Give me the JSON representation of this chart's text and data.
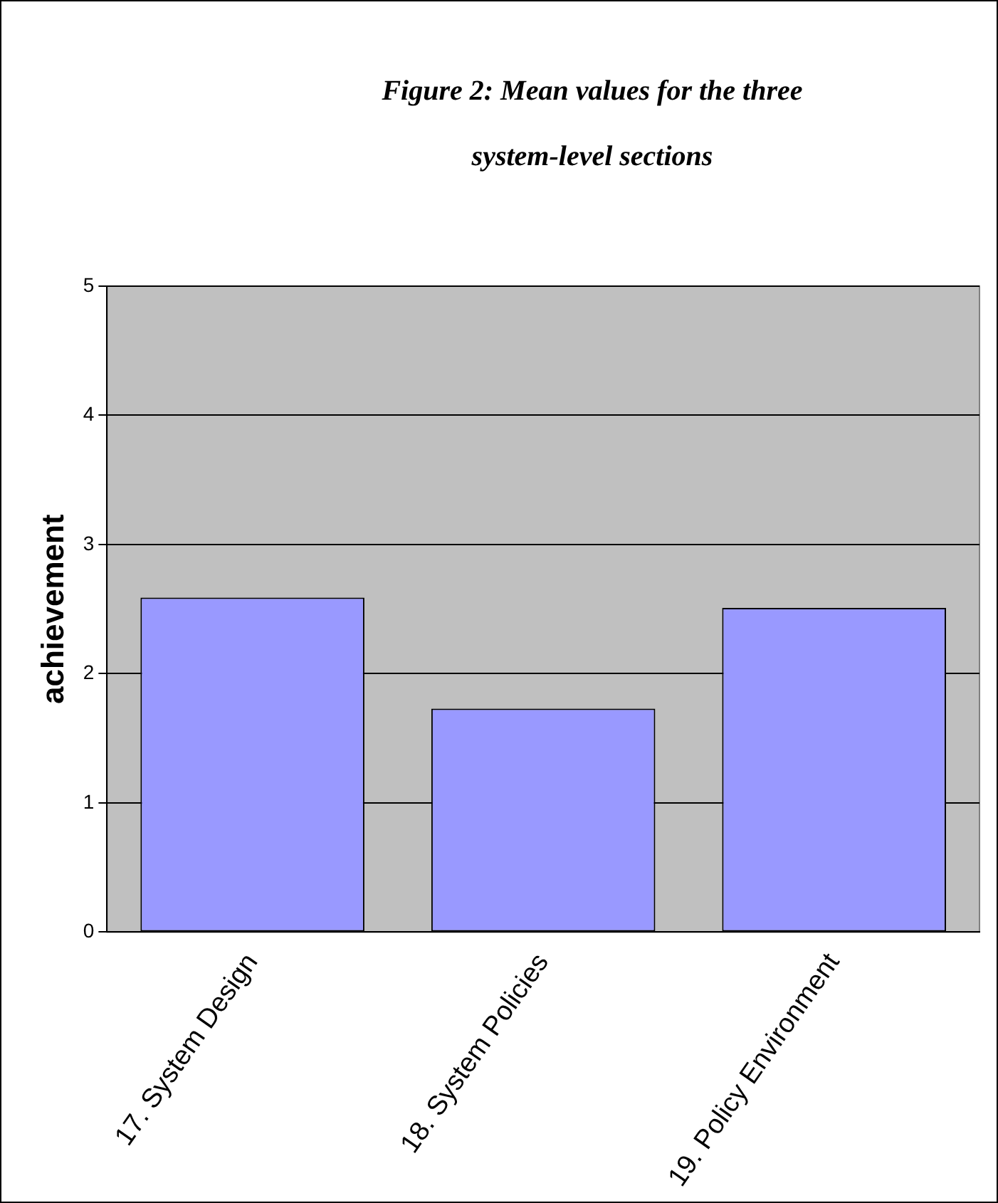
{
  "chart_data": {
    "type": "bar",
    "title": "Figure 2: Mean values for the three system-level sections",
    "ylabel": "achievement",
    "categories": [
      "17. System Design",
      "18. System Policies",
      "19. Policy Environment"
    ],
    "values": [
      2.59,
      1.73,
      2.51
    ],
    "color": "#9999ff",
    "ylim": [
      0,
      5
    ],
    "yticks": [
      0,
      1,
      2,
      3,
      4,
      5
    ],
    "grid": "y",
    "legend": false
  }
}
